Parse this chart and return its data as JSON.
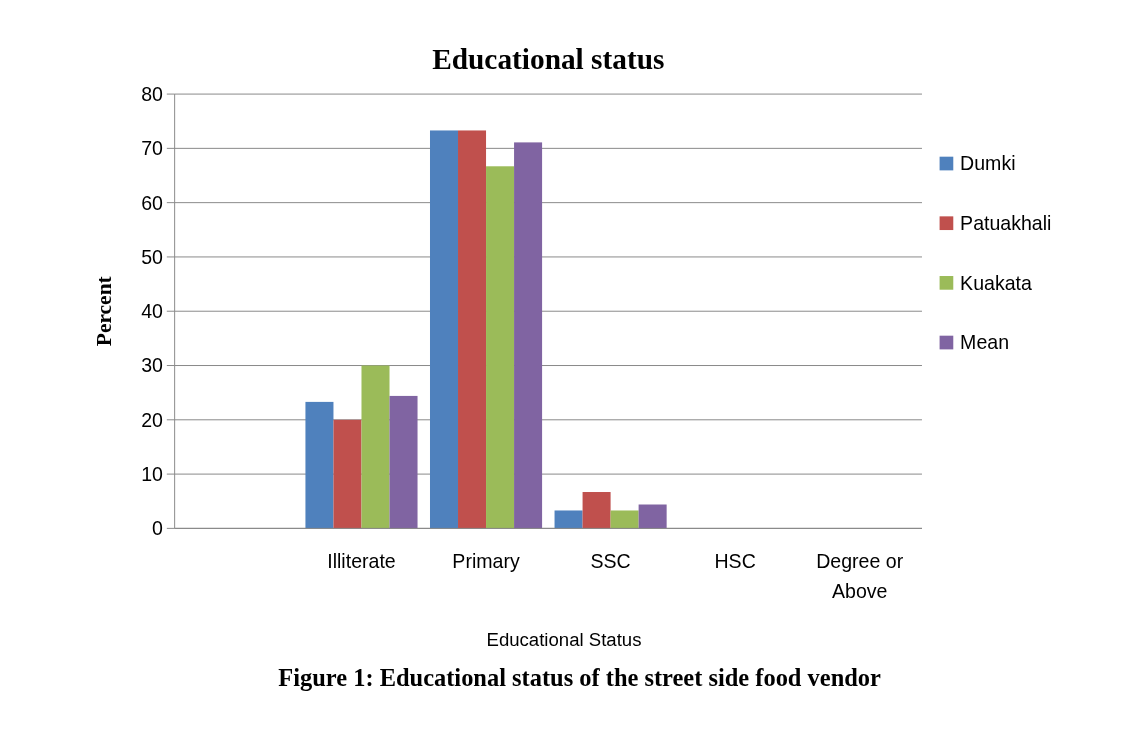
{
  "chart_data": {
    "type": "bar",
    "title": "Educational status",
    "xlabel": "Educational Status",
    "ylabel": "Percent",
    "annotations": [
      "Figure 1: Educational status of the street side food vendor"
    ],
    "categories": [
      null,
      "Illiterate",
      "Primary",
      "SSC",
      "HSC",
      "Degree or Above"
    ],
    "series": [
      {
        "name": "Dumki",
        "color": "#4f81bd",
        "values": [
          null,
          23.3,
          73.3,
          3.3,
          0,
          0
        ]
      },
      {
        "name": "Patuakhali",
        "color": "#c0504d",
        "values": [
          null,
          20,
          73.3,
          6.7,
          0,
          0
        ]
      },
      {
        "name": "Kuakata",
        "color": "#9bbb59",
        "values": [
          null,
          30,
          66.7,
          3.3,
          0,
          0
        ]
      },
      {
        "name": "Mean",
        "color": "#8064a2",
        "values": [
          null,
          24.4,
          71.1,
          4.4,
          0,
          0
        ]
      }
    ],
    "ylim": [
      0,
      80
    ],
    "yticks": [
      0,
      10,
      20,
      30,
      40,
      50,
      60,
      70,
      80
    ],
    "grid": "y",
    "legend": "right"
  }
}
